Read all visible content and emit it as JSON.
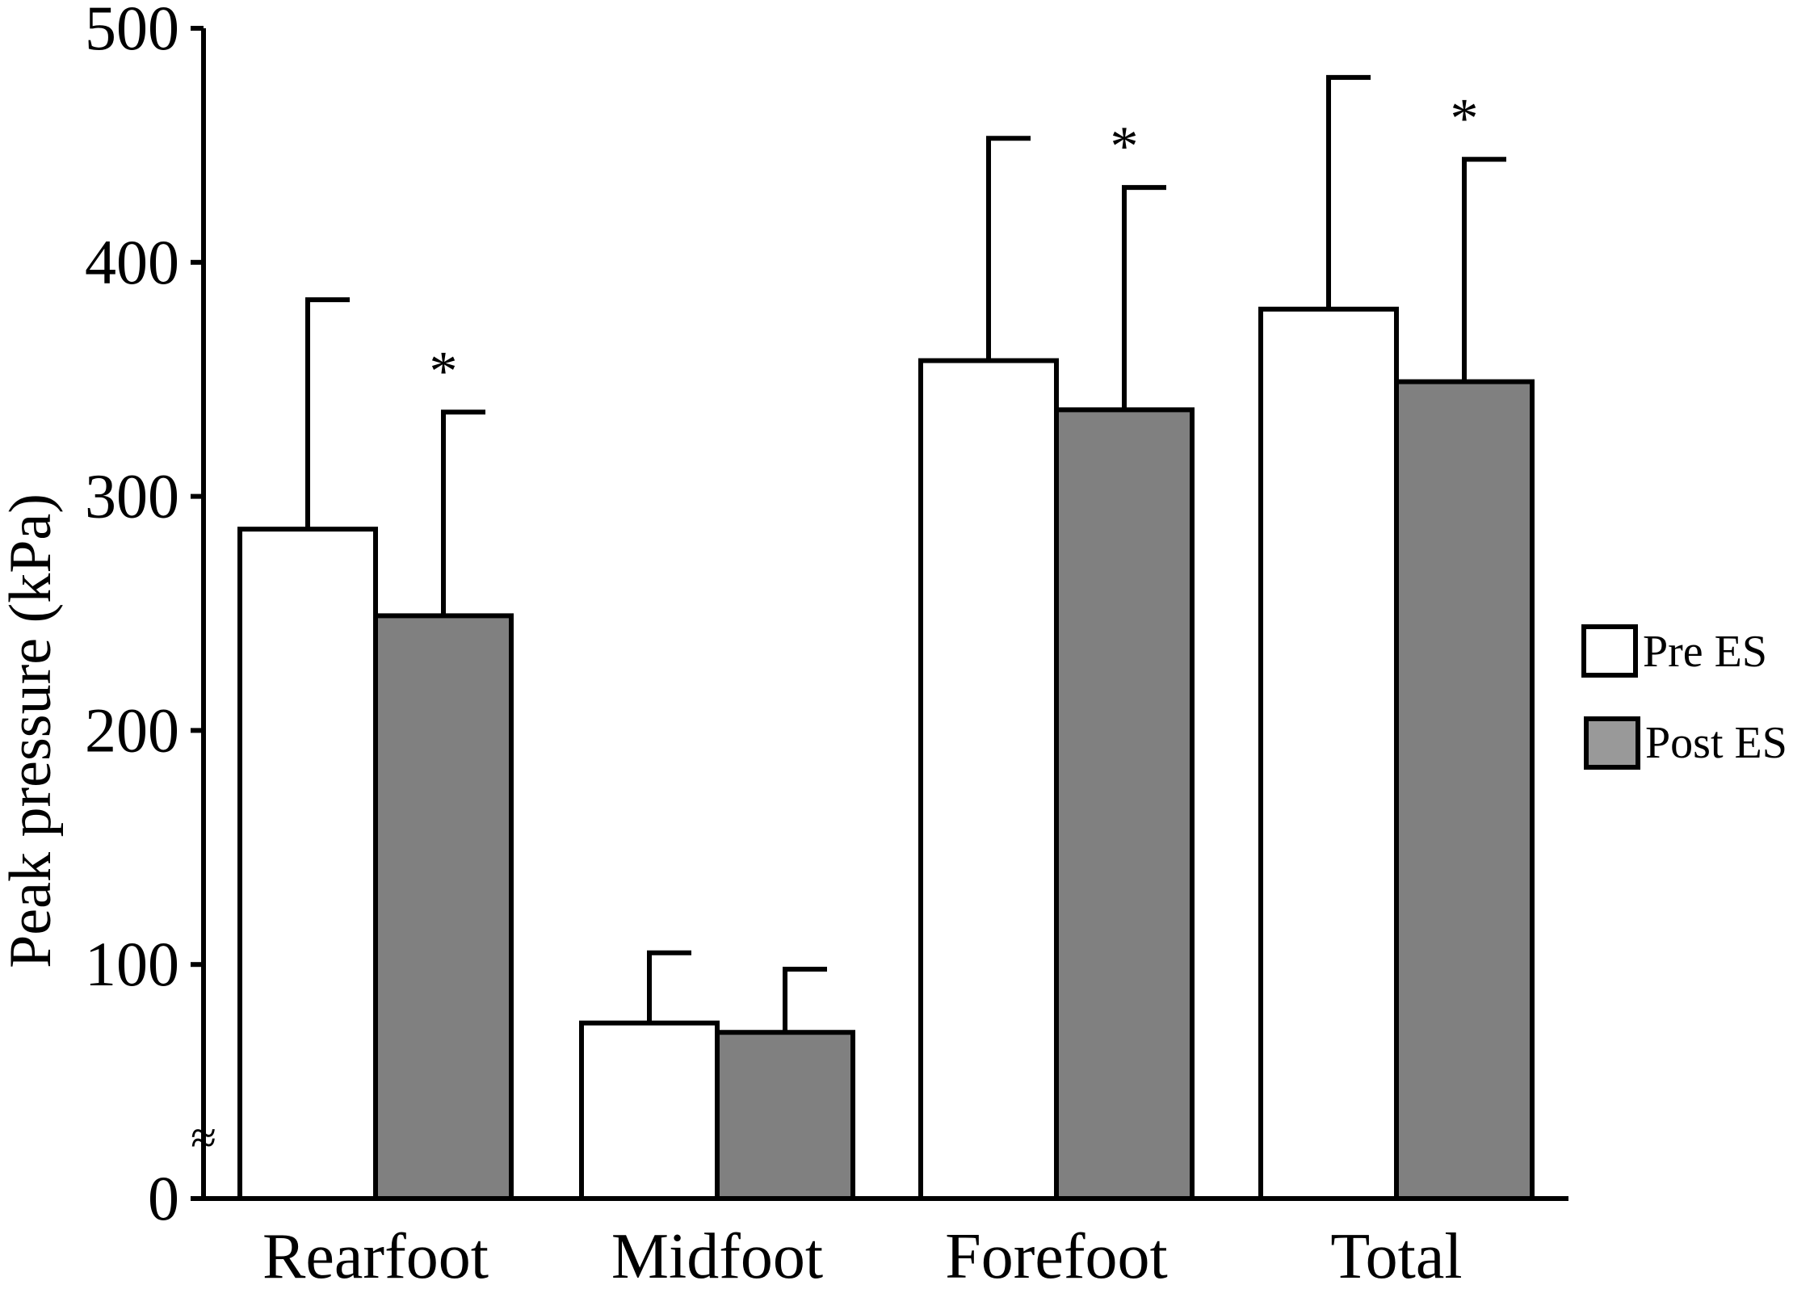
{
  "chart_data": {
    "type": "bar",
    "title": "",
    "xlabel": "",
    "ylabel": "Peak pressure (kPa)",
    "categories": [
      "Rearfoot",
      "Midfoot",
      "Forefoot",
      "Total"
    ],
    "series": [
      {
        "name": "Pre ES",
        "color": "#ffffff",
        "values": [
          286,
          75,
          358,
          380
        ],
        "error": [
          98,
          30,
          95,
          99
        ]
      },
      {
        "name": "Post ES",
        "color": "#808080",
        "values": [
          249,
          71,
          337,
          349
        ],
        "error": [
          87,
          27,
          95,
          95
        ]
      }
    ],
    "significance": [
      {
        "category": "Rearfoot",
        "series": "Post ES",
        "mark": "*"
      },
      {
        "category": "Forefoot",
        "series": "Post ES",
        "mark": "*"
      },
      {
        "category": "Total",
        "series": "Post ES",
        "mark": "*"
      }
    ],
    "yticks": [
      "0",
      "100",
      "200",
      "300",
      "400",
      "500"
    ],
    "ylim": [
      0,
      500
    ],
    "axis_break": "≈",
    "legend_position": "right",
    "grid": false
  }
}
